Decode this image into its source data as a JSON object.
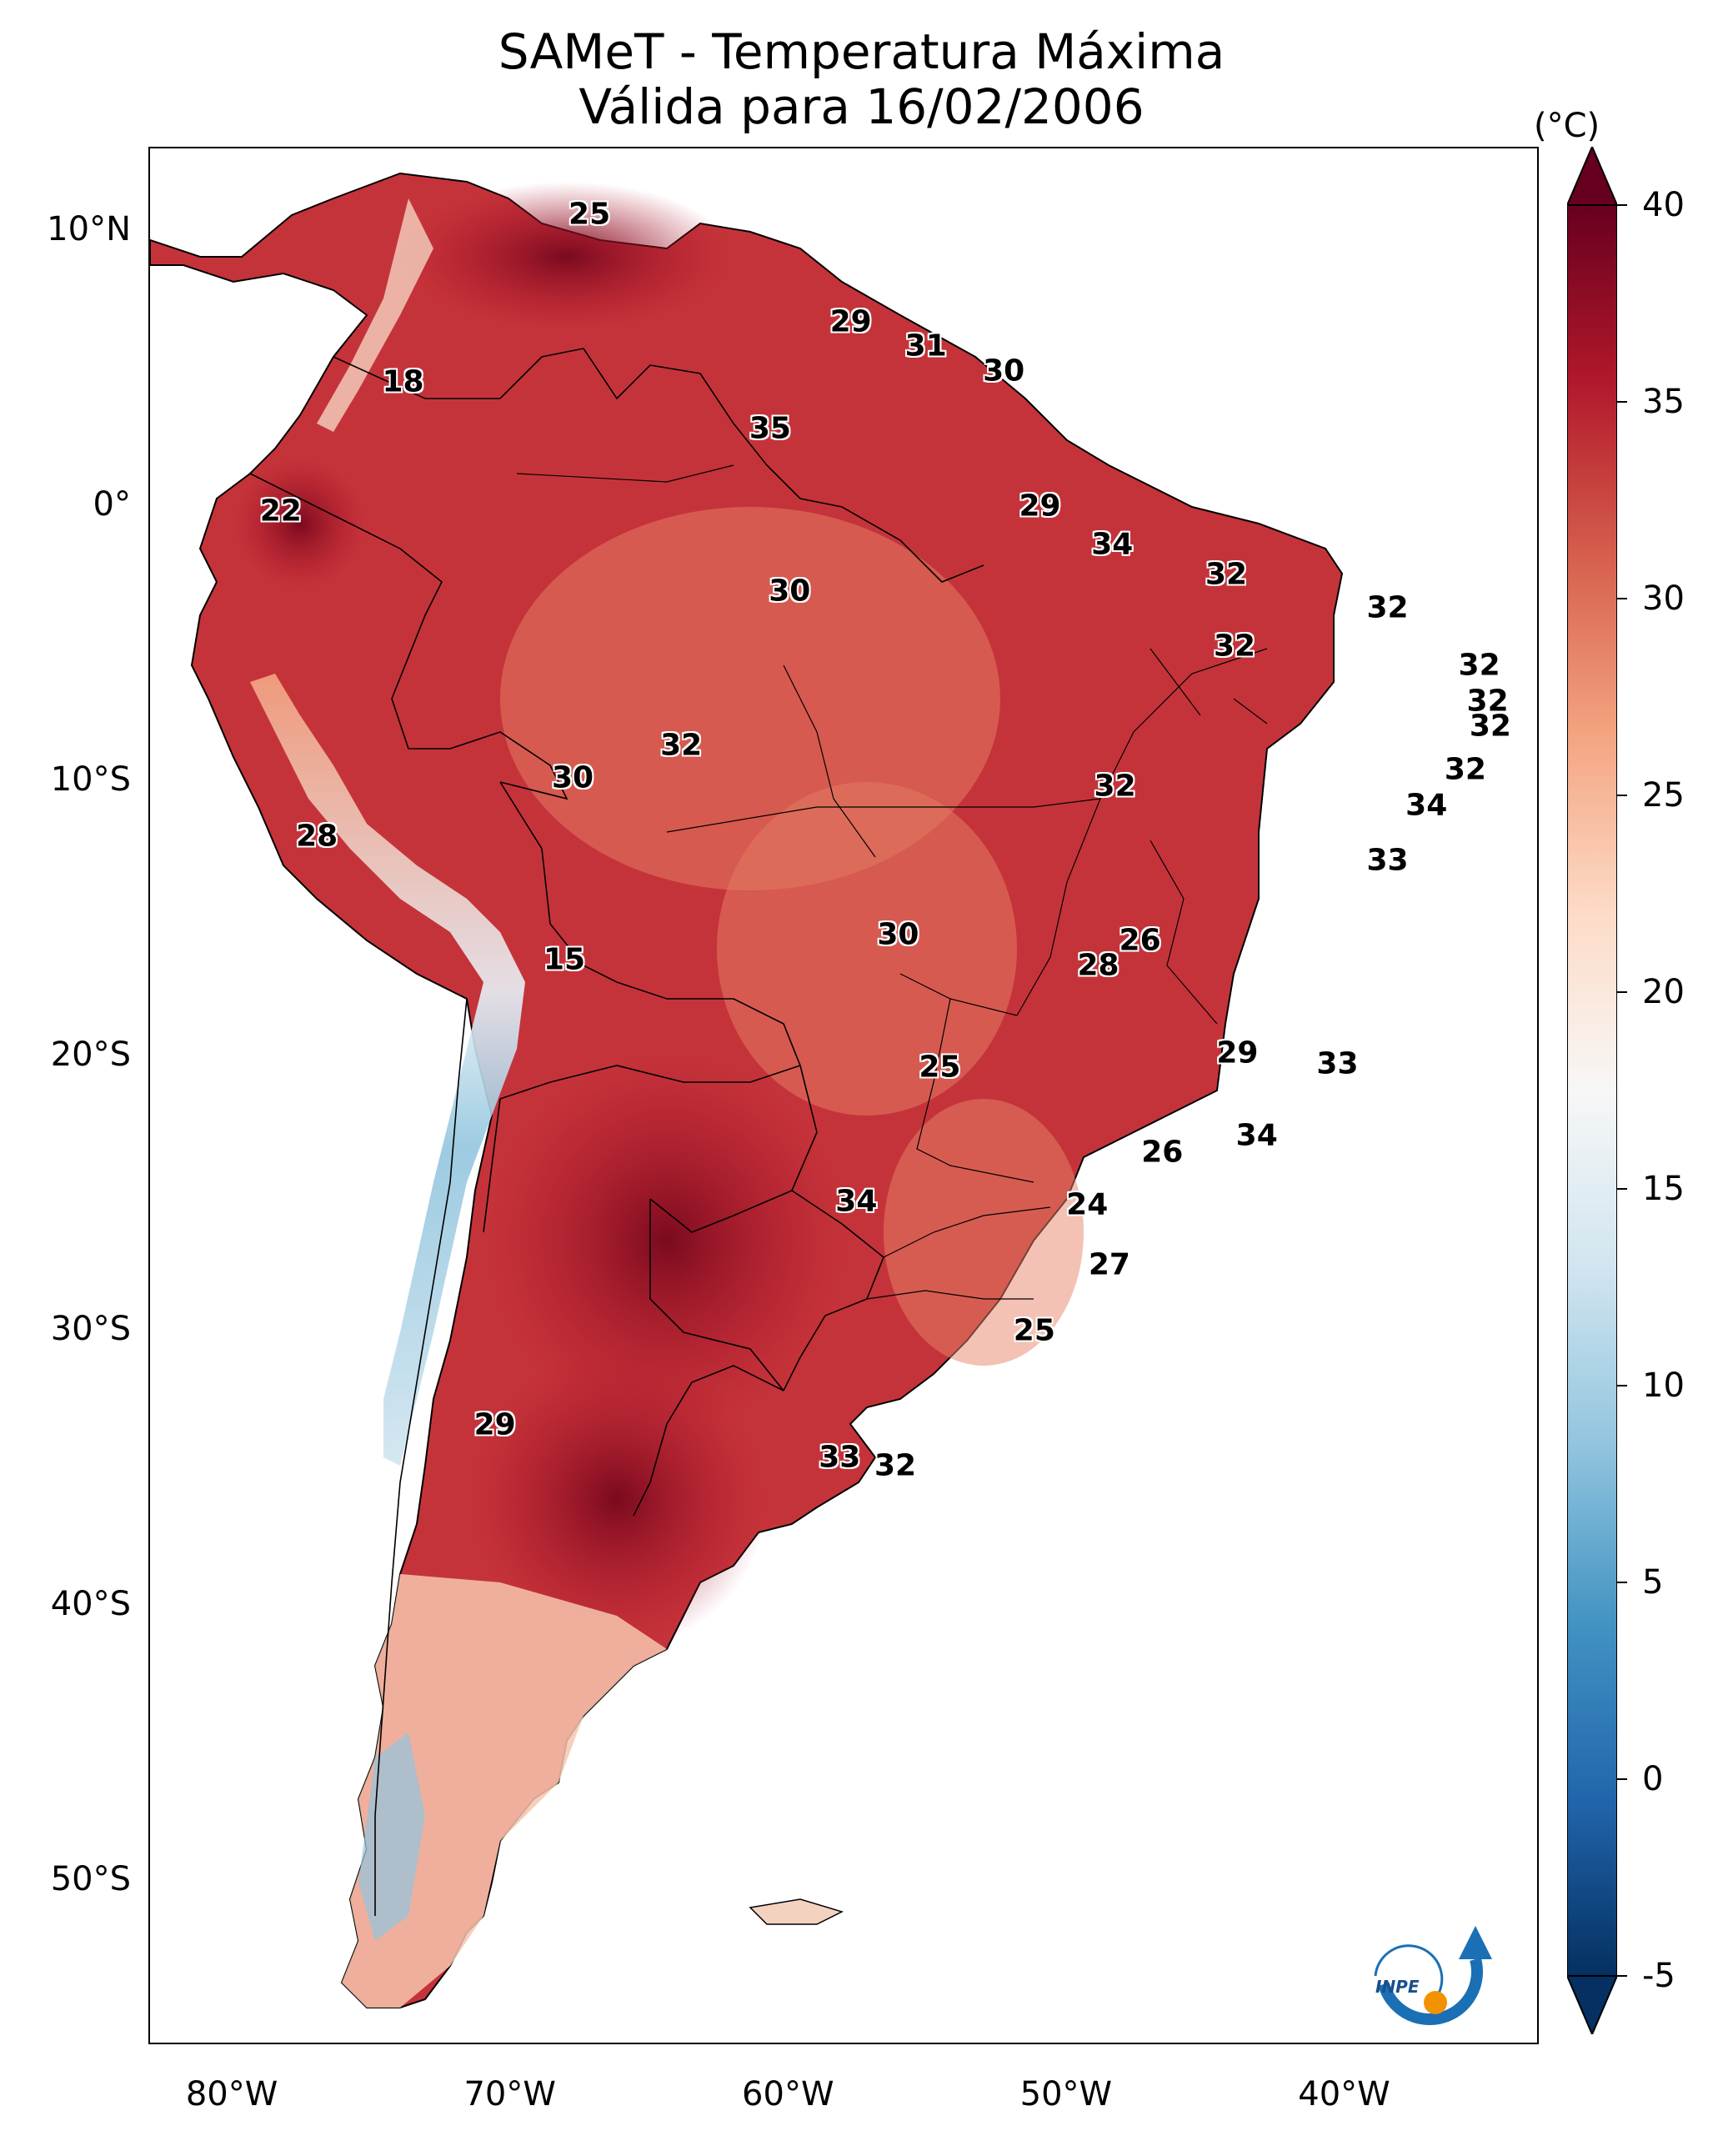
{
  "title": {
    "line1": "SAMeT - Temperatura Máxima",
    "line2": "Válida para 16/02/2006"
  },
  "axes": {
    "x_ticks": [
      {
        "value": -80,
        "label": "80°W"
      },
      {
        "value": -70,
        "label": "70°W"
      },
      {
        "value": -60,
        "label": "60°W"
      },
      {
        "value": -50,
        "label": "50°W"
      },
      {
        "value": -40,
        "label": "40°W"
      }
    ],
    "y_ticks": [
      {
        "value": 10,
        "label": "10°N"
      },
      {
        "value": 0,
        "label": "0°"
      },
      {
        "value": -10,
        "label": "10°S"
      },
      {
        "value": -20,
        "label": "20°S"
      },
      {
        "value": -30,
        "label": "30°S"
      },
      {
        "value": -40,
        "label": "40°S"
      },
      {
        "value": -50,
        "label": "50°S"
      }
    ],
    "lon_range": [
      -83,
      -33
    ],
    "lat_range": [
      13,
      -56
    ]
  },
  "colorbar": {
    "unit": "(°C)",
    "range": [
      -5,
      40
    ],
    "ticks": [
      "-5",
      "0",
      "5",
      "10",
      "15",
      "20",
      "25",
      "30",
      "35",
      "40"
    ],
    "colors": [
      "#053061",
      "#2166ac",
      "#4393c3",
      "#92c5de",
      "#d1e5f0",
      "#f7f7f7",
      "#fddbc7",
      "#f4a582",
      "#d6604d",
      "#b2182b",
      "#67001f"
    ]
  },
  "station_labels": [
    {
      "lon": -67.2,
      "lat": 10.6,
      "text": "25"
    },
    {
      "lon": -73.9,
      "lat": 4.5,
      "text": "18"
    },
    {
      "lon": -78.3,
      "lat": -0.2,
      "text": "22"
    },
    {
      "lon": -57.8,
      "lat": 6.7,
      "text": "29"
    },
    {
      "lon": -55.1,
      "lat": 5.8,
      "text": "31"
    },
    {
      "lon": -52.3,
      "lat": 4.9,
      "text": "30"
    },
    {
      "lon": -60.7,
      "lat": 2.8,
      "text": "35"
    },
    {
      "lon": -51.0,
      "lat": 0.0,
      "text": "29"
    },
    {
      "lon": -48.4,
      "lat": -1.4,
      "text": "34"
    },
    {
      "lon": -44.3,
      "lat": -2.5,
      "text": "32"
    },
    {
      "lon": -60.0,
      "lat": -3.1,
      "text": "30"
    },
    {
      "lon": -44.0,
      "lat": -5.1,
      "text": "32"
    },
    {
      "lon": -38.5,
      "lat": -3.7,
      "text": "32"
    },
    {
      "lon": -35.2,
      "lat": -5.8,
      "text": "32"
    },
    {
      "lon": -34.9,
      "lat": -7.1,
      "text": "32"
    },
    {
      "lon": -34.8,
      "lat": -8.0,
      "text": "32"
    },
    {
      "lon": -63.9,
      "lat": -8.7,
      "text": "32"
    },
    {
      "lon": -67.8,
      "lat": -9.9,
      "text": "30"
    },
    {
      "lon": -48.3,
      "lat": -10.2,
      "text": "32"
    },
    {
      "lon": -35.7,
      "lat": -9.6,
      "text": "32"
    },
    {
      "lon": -37.1,
      "lat": -10.9,
      "text": "34"
    },
    {
      "lon": -38.5,
      "lat": -12.9,
      "text": "33"
    },
    {
      "lon": -77.0,
      "lat": -12.0,
      "text": "28"
    },
    {
      "lon": -68.1,
      "lat": -16.5,
      "text": "15"
    },
    {
      "lon": -56.1,
      "lat": -15.6,
      "text": "30"
    },
    {
      "lon": -47.4,
      "lat": -15.8,
      "text": "26"
    },
    {
      "lon": -48.9,
      "lat": -16.7,
      "text": "28"
    },
    {
      "lon": -54.6,
      "lat": -20.4,
      "text": "25"
    },
    {
      "lon": -43.9,
      "lat": -19.9,
      "text": "29"
    },
    {
      "lon": -40.3,
      "lat": -20.3,
      "text": "33"
    },
    {
      "lon": -43.2,
      "lat": -22.9,
      "text": "34"
    },
    {
      "lon": -46.6,
      "lat": -23.5,
      "text": "26"
    },
    {
      "lon": -57.6,
      "lat": -25.3,
      "text": "34"
    },
    {
      "lon": -49.3,
      "lat": -25.4,
      "text": "24"
    },
    {
      "lon": -48.5,
      "lat": -27.6,
      "text": "27"
    },
    {
      "lon": -51.2,
      "lat": -30.0,
      "text": "25"
    },
    {
      "lon": -70.6,
      "lat": -33.4,
      "text": "29"
    },
    {
      "lon": -58.2,
      "lat": -34.6,
      "text": "33"
    },
    {
      "lon": -56.2,
      "lat": -34.9,
      "text": "32"
    }
  ]
}
